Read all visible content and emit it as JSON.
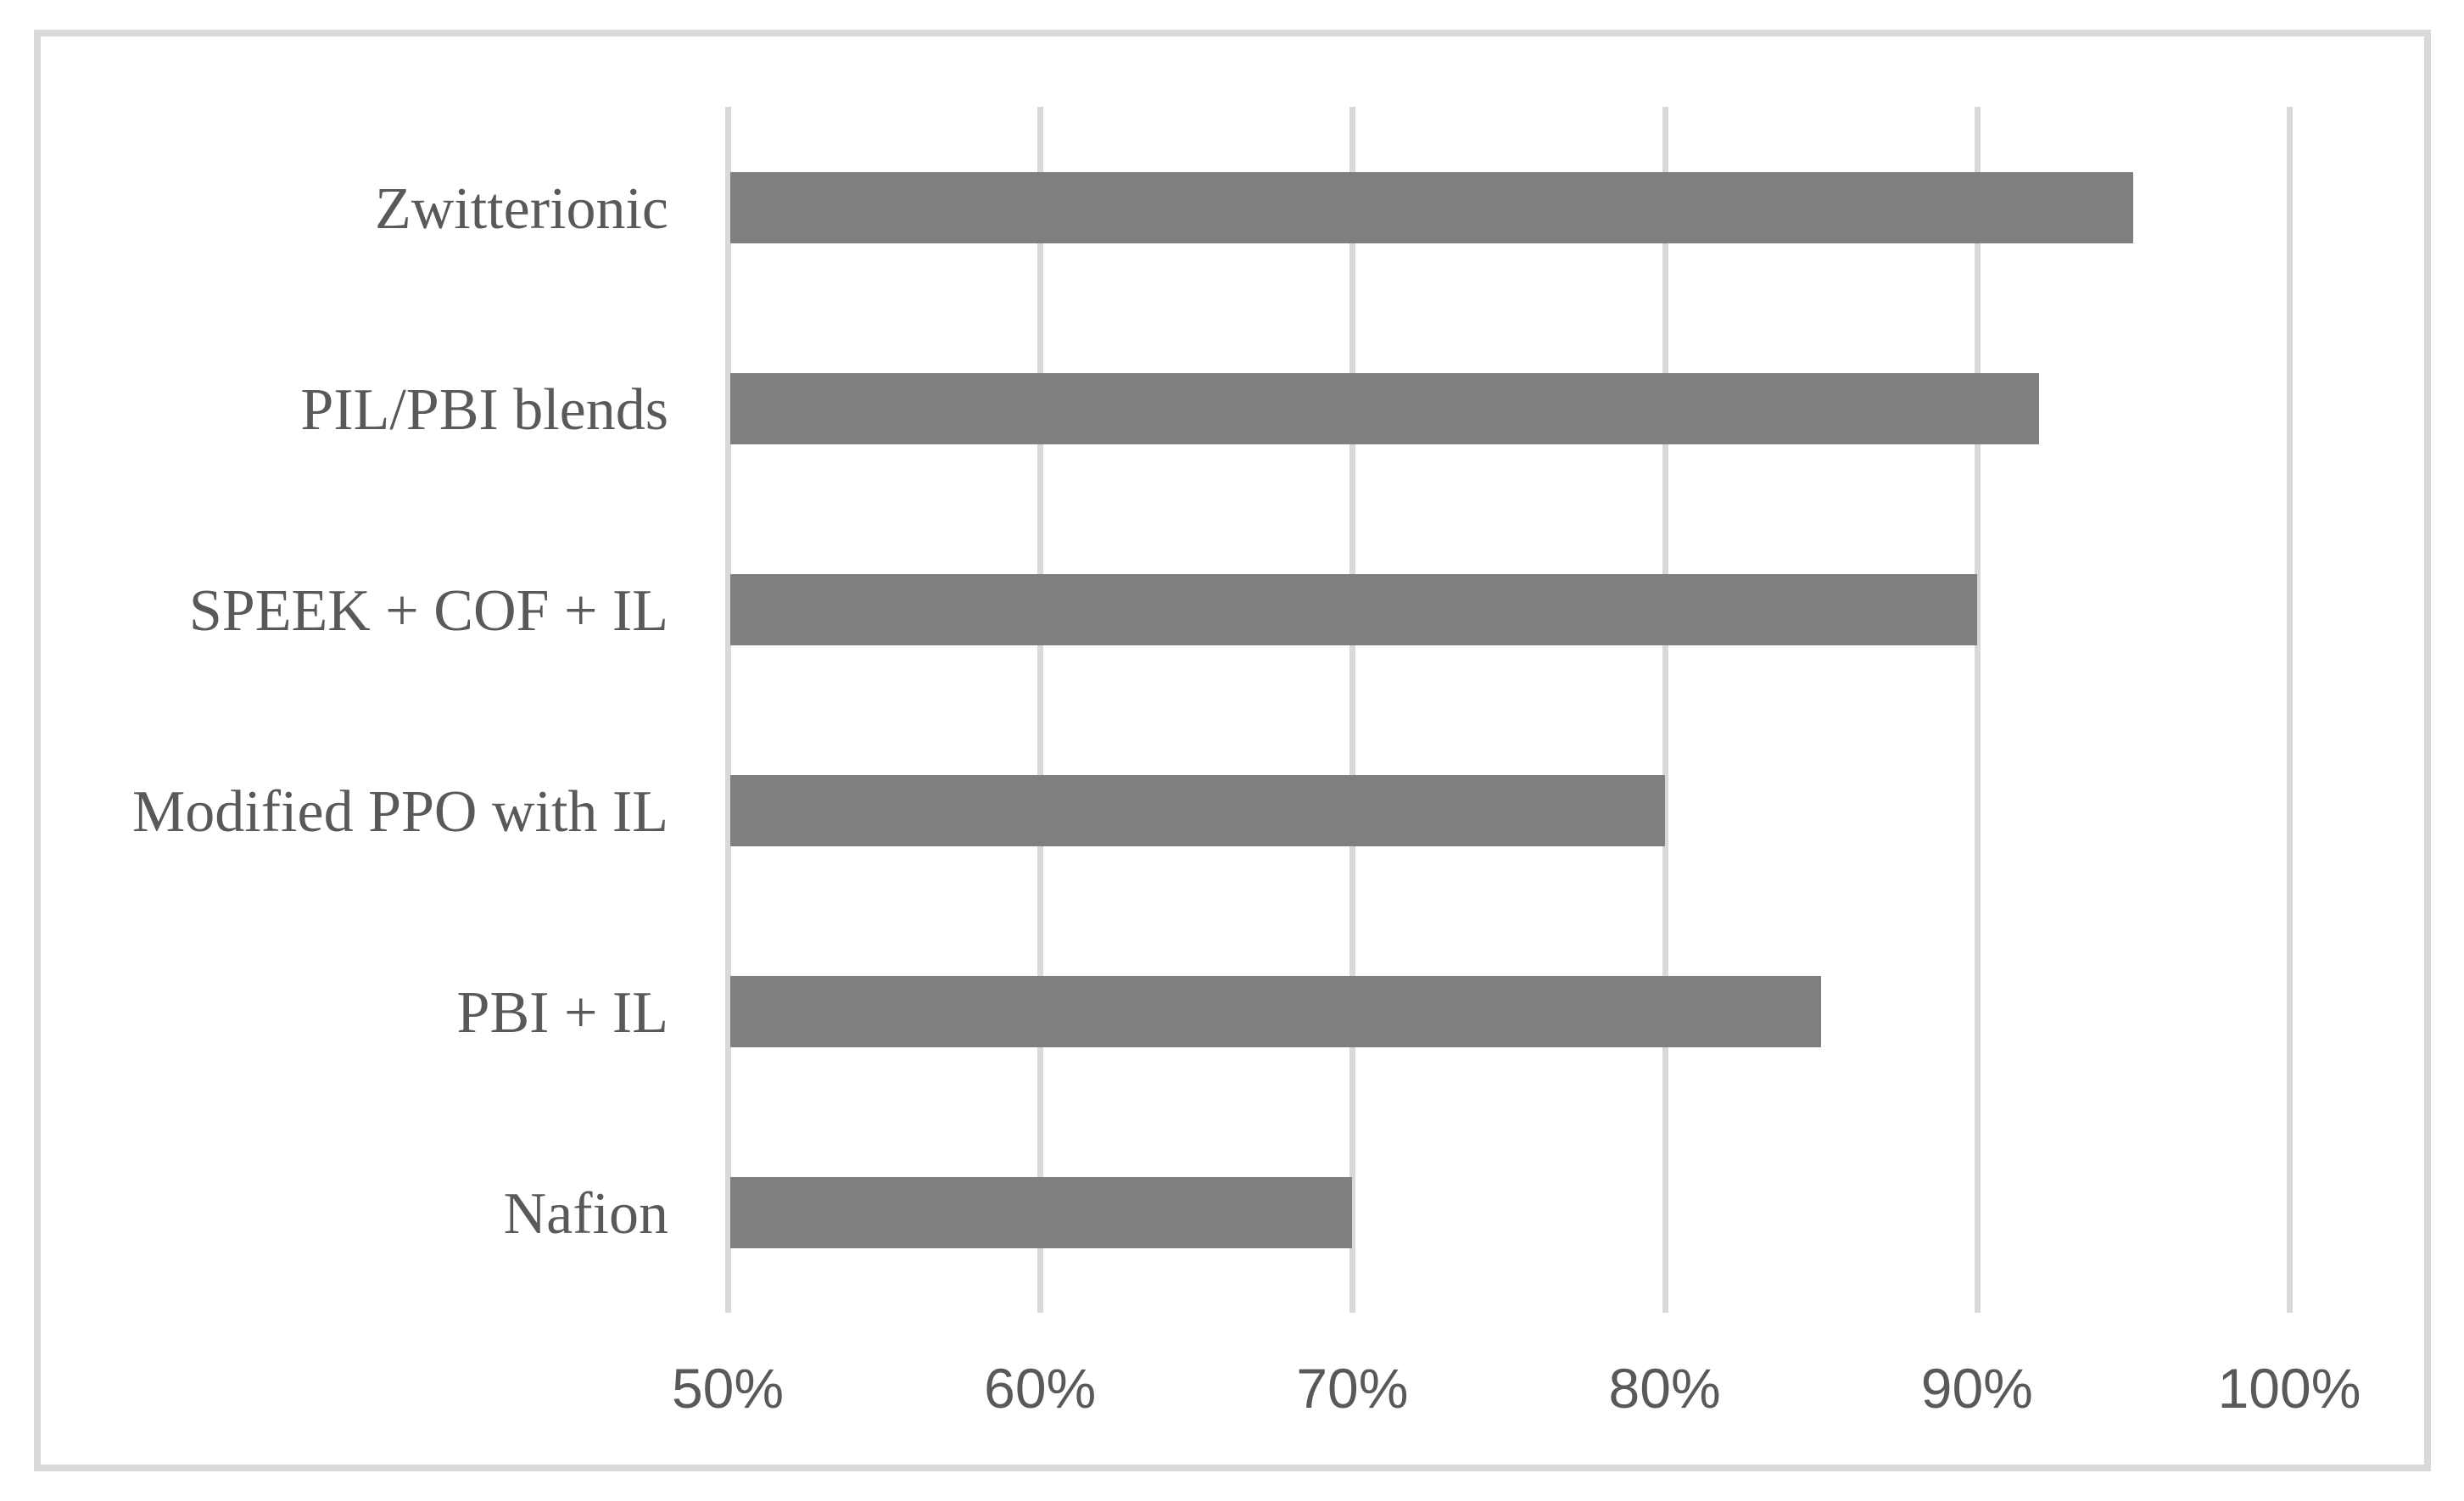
{
  "figure": {
    "background_color": "#FFFFFF",
    "border_color": "#D9D9D9"
  },
  "chart_data": {
    "type": "bar",
    "orientation": "horizontal",
    "title": "",
    "xlabel": "",
    "ylabel": "",
    "categories": [
      "Zwitterionic",
      "PIL/PBI blends",
      "SPEEK + COF + IL",
      "Modified PPO with IL",
      "PBI + IL",
      "Nafion"
    ],
    "values": [
      95,
      92,
      90,
      80,
      85,
      70
    ],
    "unit": "%",
    "xlim": [
      50,
      100
    ],
    "xticks": [
      50,
      60,
      70,
      80,
      90,
      100
    ],
    "xtick_labels": [
      "50%",
      "60%",
      "70%",
      "80%",
      "90%",
      "100%"
    ],
    "grid": "vertical-gridlines-on",
    "legend": "none",
    "bar_color": "#7F7F7F",
    "gridline_color": "#D9D9D9",
    "label_color": "#595959"
  }
}
